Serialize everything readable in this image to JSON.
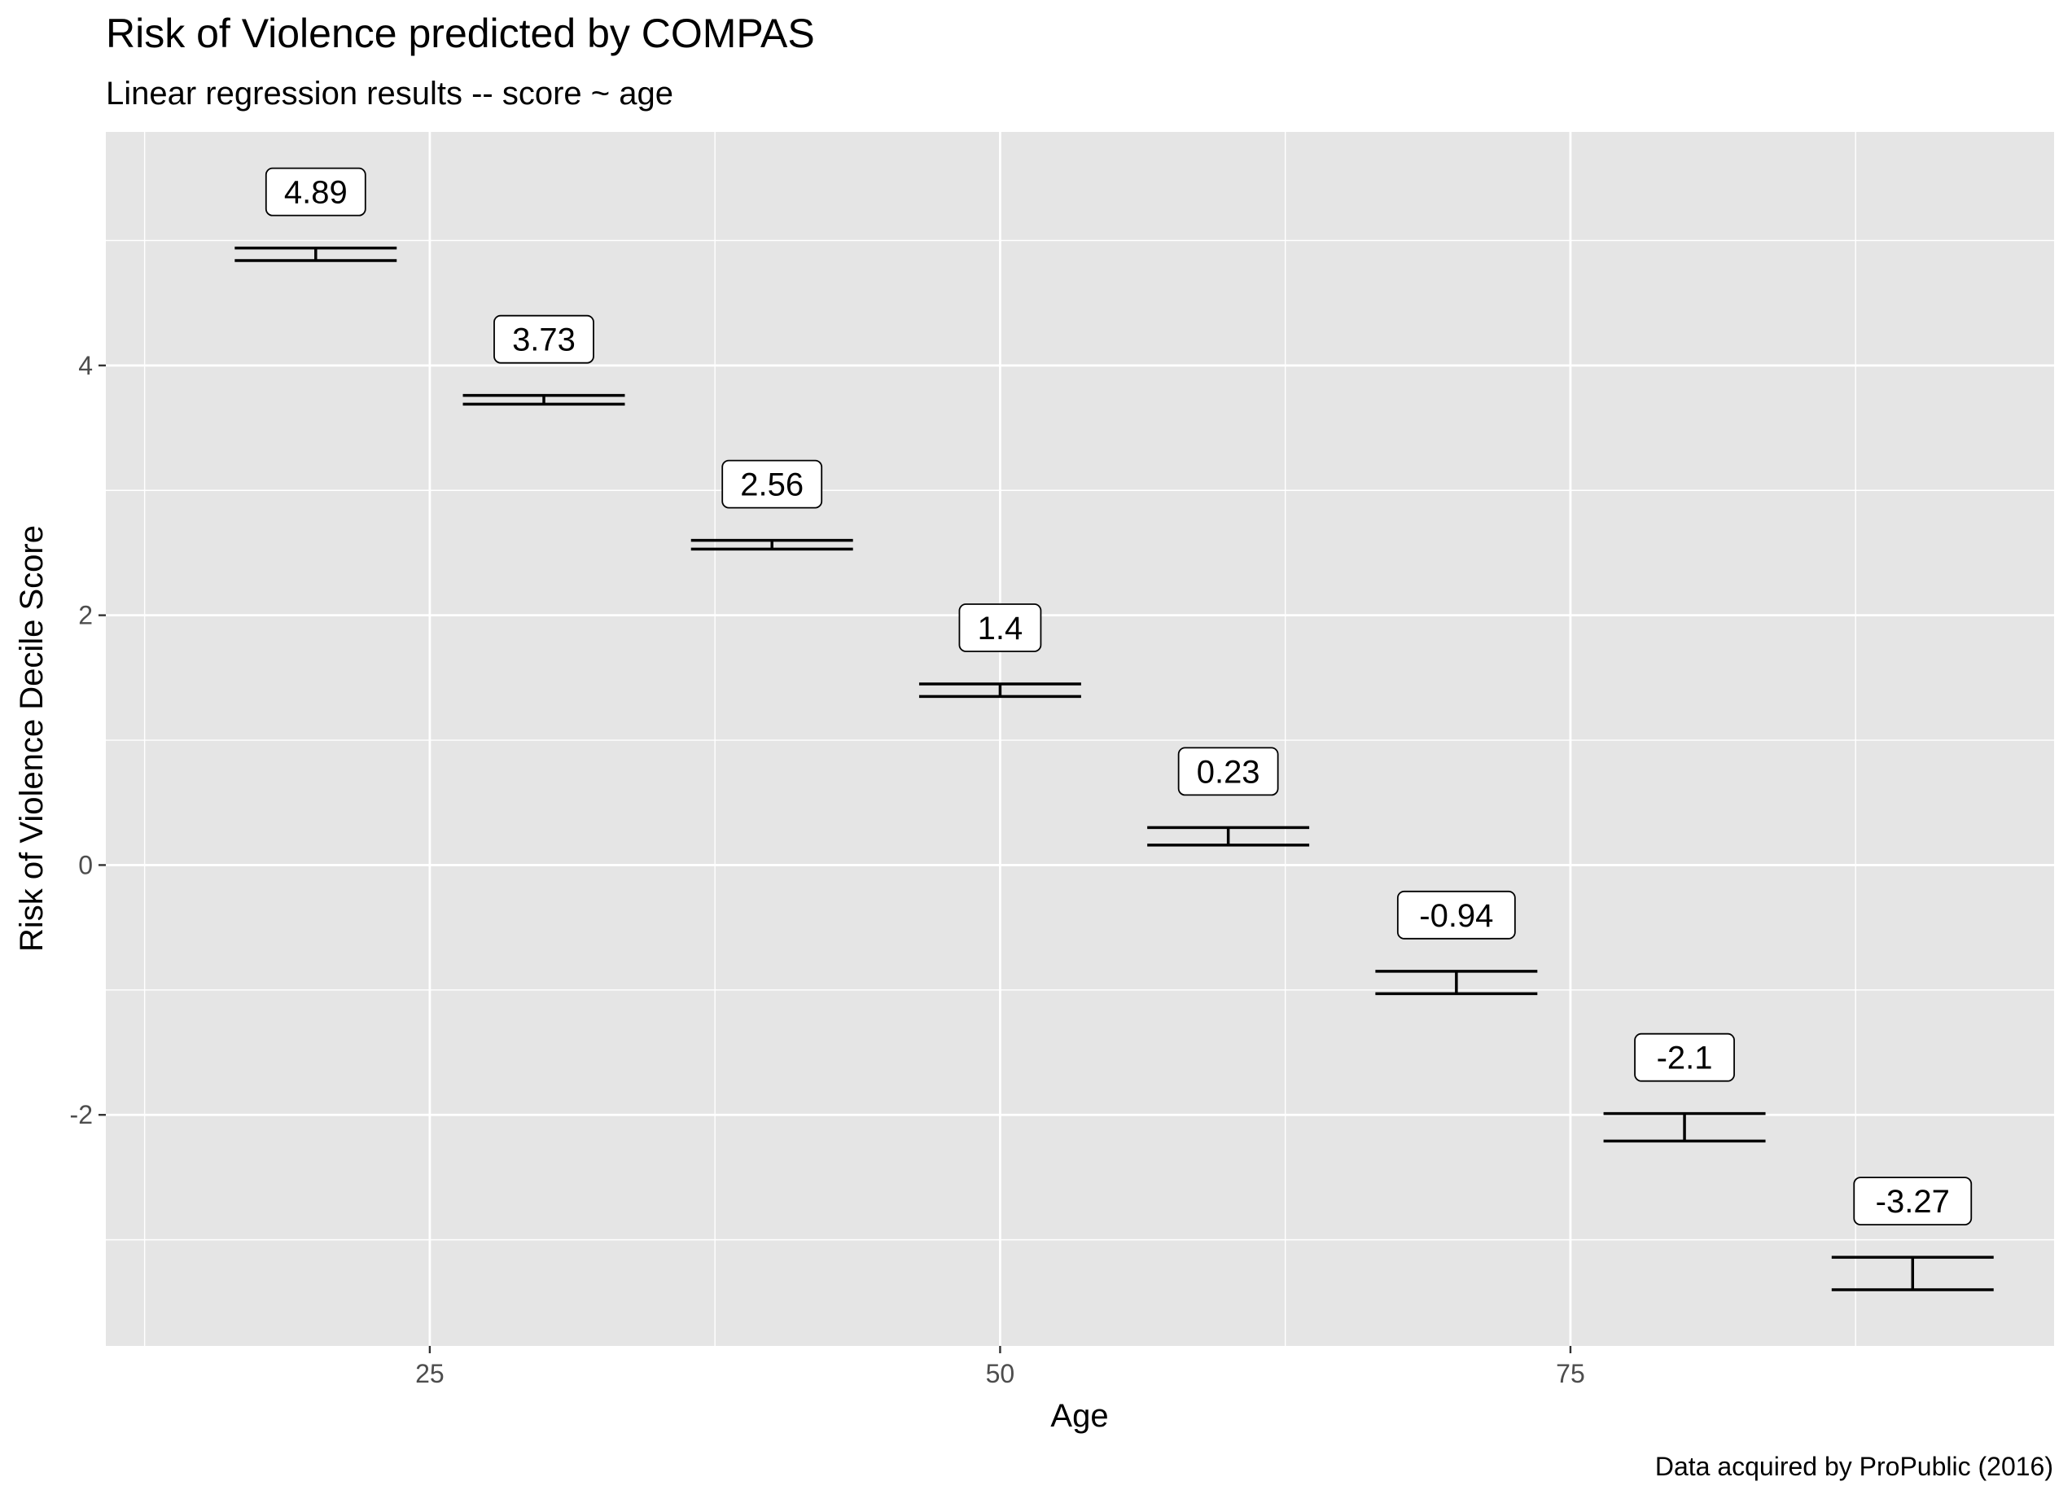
{
  "chart_data": {
    "type": "errorbar",
    "title": "Risk of Violence predicted by COMPAS",
    "subtitle": "Linear regression results -- score ~ age",
    "caption": "Data acquired by ProPublic (2016)",
    "xlabel": "Age",
    "ylabel": "Risk of Violence Decile Score",
    "xlim": [
      10.8,
      96.2
    ],
    "ylim": [
      -3.85,
      5.87
    ],
    "x_ticks": [
      25,
      50,
      75
    ],
    "y_ticks": [
      -2,
      0,
      2,
      4
    ],
    "x_tick_labels": [
      "25",
      "50",
      "75"
    ],
    "y_tick_labels": [
      "-2",
      "0",
      "2",
      "4"
    ],
    "grid": true,
    "legend": "none",
    "colors": {
      "panel": "#e5e5e5",
      "grid": "#ffffff",
      "mark": "#000000",
      "label_bg": "#ffffff"
    },
    "points": [
      {
        "x": 20,
        "y": 4.89,
        "lower": 4.84,
        "upper": 4.94,
        "label": "4.89"
      },
      {
        "x": 30,
        "y": 3.73,
        "lower": 3.69,
        "upper": 3.76,
        "label": "3.73"
      },
      {
        "x": 40,
        "y": 2.56,
        "lower": 2.53,
        "upper": 2.6,
        "label": "2.56"
      },
      {
        "x": 50,
        "y": 1.4,
        "lower": 1.35,
        "upper": 1.45,
        "label": "1.4"
      },
      {
        "x": 60,
        "y": 0.23,
        "lower": 0.16,
        "upper": 0.3,
        "label": "0.23"
      },
      {
        "x": 70,
        "y": -0.94,
        "lower": -1.03,
        "upper": -0.85,
        "label": "-0.94"
      },
      {
        "x": 80,
        "y": -2.1,
        "lower": -2.21,
        "upper": -1.99,
        "label": "-2.1"
      },
      {
        "x": 90,
        "y": -3.27,
        "lower": -3.4,
        "upper": -3.14,
        "label": "-3.27"
      }
    ]
  }
}
